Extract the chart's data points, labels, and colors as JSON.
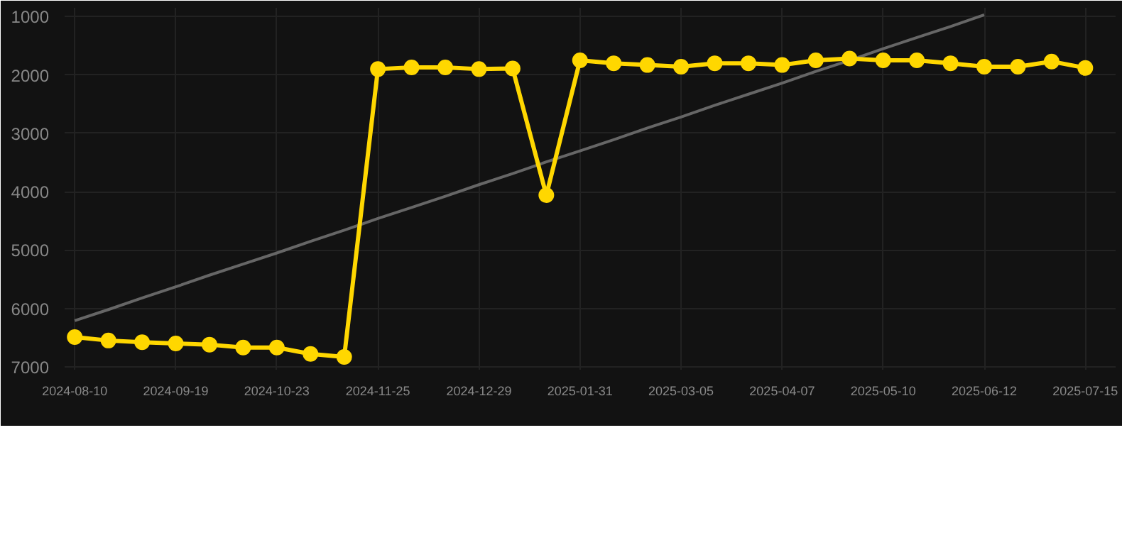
{
  "chart_data": {
    "type": "line",
    "categories": [
      "2024-08-10",
      null,
      null,
      "2024-09-19",
      null,
      null,
      "2024-10-23",
      null,
      null,
      "2024-11-25",
      null,
      null,
      "2024-12-29",
      null,
      null,
      "2025-01-31",
      null,
      null,
      "2025-03-05",
      null,
      null,
      "2025-04-07",
      null,
      null,
      "2025-05-10",
      null,
      null,
      "2025-06-12",
      null,
      null,
      "2025-07-15"
    ],
    "series": [
      {
        "color": "#666666",
        "marker": "none",
        "values": [
          6210,
          6020,
          5820,
          5630,
          5430,
          5240,
          5050,
          4850,
          4660,
          4460,
          4270,
          4080,
          3880,
          3690,
          3490,
          3300,
          3110,
          2910,
          2720,
          2520,
          2330,
          2140,
          1940,
          1750,
          1550,
          1360,
          1170,
          970,
          null,
          null,
          null
        ]
      },
      {
        "color": "#ffd700",
        "marker": "circle",
        "values": [
          6490,
          6550,
          6580,
          6600,
          6620,
          6670,
          6670,
          6780,
          6830,
          1900,
          1870,
          1870,
          1900,
          1890,
          4060,
          1750,
          1800,
          1830,
          1860,
          1800,
          1800,
          1830,
          1750,
          1720,
          1750,
          1750,
          1800,
          1860,
          1860,
          1770,
          1880
        ]
      }
    ],
    "ylim": [
      7050,
      850
    ],
    "yticks": [
      1000,
      2000,
      3000,
      4000,
      5000,
      6000,
      7000
    ],
    "grid": true
  }
}
